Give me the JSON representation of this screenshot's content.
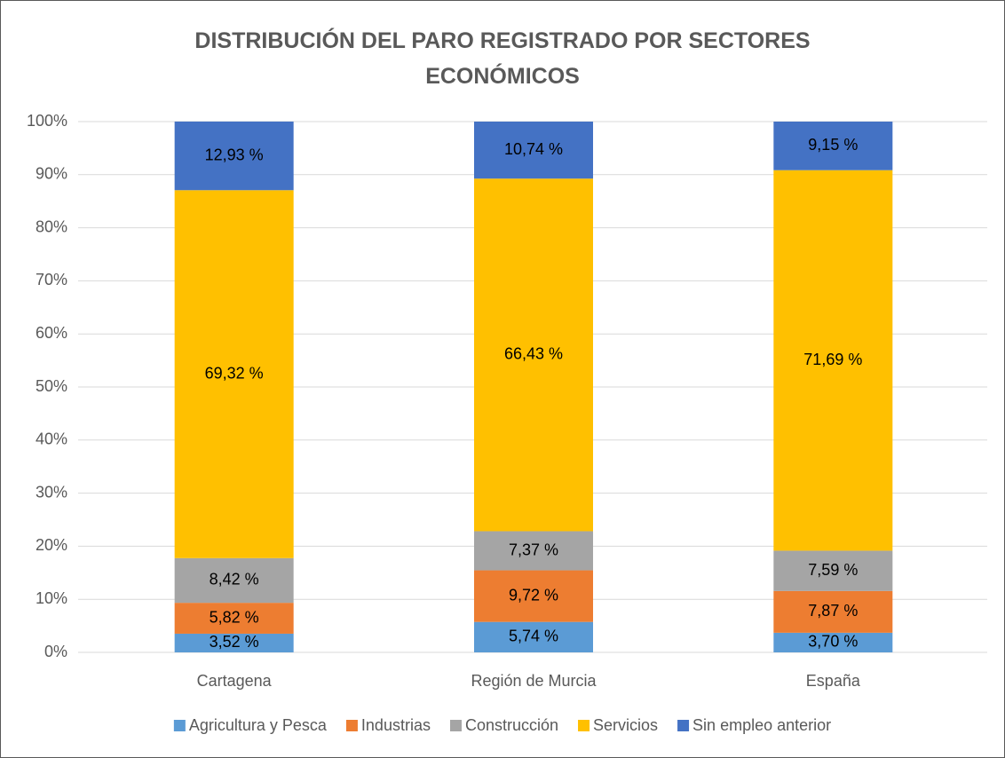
{
  "chart_data": {
    "type": "stacked_bar",
    "title": "DISTRIBUCIÓN DEL PARO REGISTRADO POR SECTORES ECONÓMICOS",
    "categories": [
      "Cartagena",
      "Región de Murcia",
      "España"
    ],
    "series": [
      {
        "name": "Agricultura y Pesca",
        "color": "#5B9BD5",
        "values": [
          3.52,
          5.74,
          3.7
        ],
        "value_labels": [
          "3,52 %",
          "5,74 %",
          "3,70 %"
        ]
      },
      {
        "name": "Industrias",
        "color": "#ED7D31",
        "values": [
          5.82,
          9.72,
          7.87
        ],
        "value_labels": [
          "5,82 %",
          "9,72 %",
          "7,87 %"
        ]
      },
      {
        "name": "Construcción",
        "color": "#A5A5A5",
        "values": [
          8.42,
          7.37,
          7.59
        ],
        "value_labels": [
          "8,42 %",
          "7,37 %",
          "7,59 %"
        ]
      },
      {
        "name": "Servicios",
        "color": "#FFC000",
        "values": [
          69.32,
          66.43,
          71.69
        ],
        "value_labels": [
          "69,32 %",
          "66,43 %",
          "71,69 %"
        ]
      },
      {
        "name": "Sin empleo anterior",
        "color": "#4472C4",
        "values": [
          12.93,
          10.74,
          9.15
        ],
        "value_labels": [
          "12,93 %",
          "10,74 %",
          "9,15 %"
        ]
      }
    ],
    "ylim": [
      0,
      100
    ],
    "yticks": [
      {
        "value": 0,
        "label": "0%"
      },
      {
        "value": 10,
        "label": "10%"
      },
      {
        "value": 20,
        "label": "20%"
      },
      {
        "value": 30,
        "label": "30%"
      },
      {
        "value": 40,
        "label": "40%"
      },
      {
        "value": 50,
        "label": "50%"
      },
      {
        "value": 60,
        "label": "60%"
      },
      {
        "value": 70,
        "label": "70%"
      },
      {
        "value": 80,
        "label": "80%"
      },
      {
        "value": 90,
        "label": "90%"
      },
      {
        "value": 100,
        "label": "100%"
      }
    ],
    "grid": true,
    "legend": "bottom"
  }
}
